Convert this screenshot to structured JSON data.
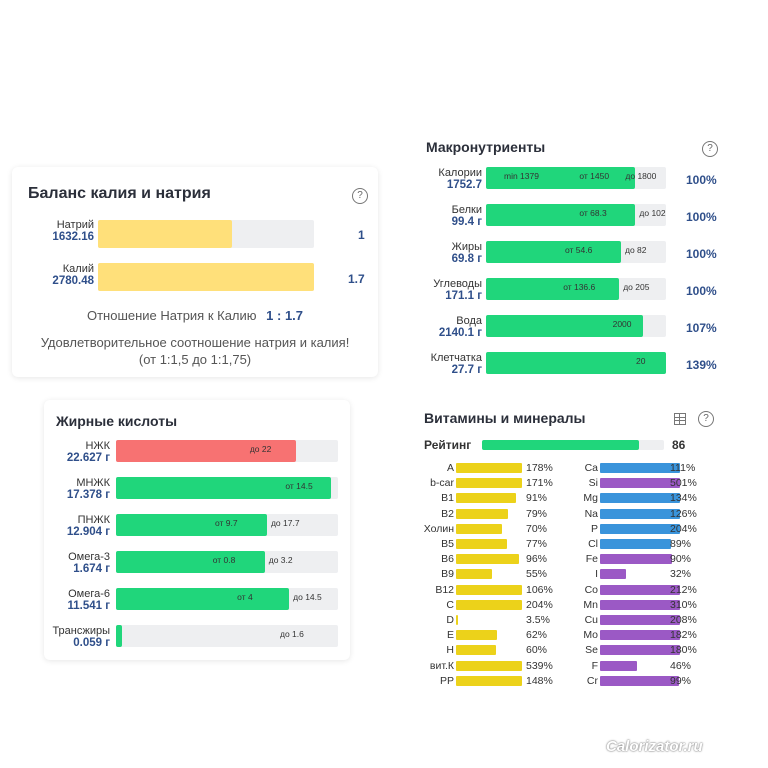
{
  "balance": {
    "title": "Баланс калия и натрия",
    "help": "?",
    "rows": [
      {
        "name": "Натрий",
        "value": "1632.16",
        "ratio_label": "1",
        "fill": 0.62
      },
      {
        "name": "Калий",
        "value": "2780.48",
        "ratio_label": "1.7",
        "fill": 1.0
      }
    ],
    "ratio_text": "Отношение Натрия к Калию",
    "ratio_value": "1 : 1.7",
    "verdict": "Удовлетворительное соотношение натрия и калия!",
    "range": "(от 1:1,5 до 1:1,75)",
    "colors": {
      "bar": "#ffe07a",
      "track": "#eeeff1"
    }
  },
  "macro": {
    "title": "Макронутриенты",
    "help": "?",
    "rows": [
      {
        "name": "Калории",
        "value": "1752.7",
        "pct": "100%",
        "fill": 0.83,
        "marks": [
          "min 1379",
          "от 1450",
          "до 1800"
        ]
      },
      {
        "name": "Белки",
        "value": "99.4 г",
        "pct": "100%",
        "fill": 0.83,
        "marks": [
          "от 68.3",
          "до 102"
        ]
      },
      {
        "name": "Жиры",
        "value": "69.8 г",
        "pct": "100%",
        "fill": 0.75,
        "marks": [
          "от 54.6",
          "до 82"
        ]
      },
      {
        "name": "Углеводы",
        "value": "171.1 г",
        "pct": "100%",
        "fill": 0.74,
        "marks": [
          "от 136.6",
          "до 205"
        ]
      },
      {
        "name": "Вода",
        "value": "2140.1 г",
        "pct": "107%",
        "fill": 0.87,
        "marks": [
          "2000"
        ]
      },
      {
        "name": "Клетчатка",
        "value": "27.7 г",
        "pct": "139%",
        "fill": 1.0,
        "marks": [
          "20"
        ]
      }
    ],
    "colors": {
      "bar": "#20d67b",
      "track": "#eeeff1"
    }
  },
  "fatty": {
    "title": "Жирные кислоты",
    "rows": [
      {
        "name": "НЖК",
        "value": "22.627 г",
        "fill": 0.81,
        "color": "#f77272",
        "marks": [
          "до 22"
        ]
      },
      {
        "name": "МНЖК",
        "value": "17.378 г",
        "fill": 0.97,
        "color": "#20d67b",
        "marks": [
          "от 14.5"
        ]
      },
      {
        "name": "ПНЖК",
        "value": "12.904 г",
        "fill": 0.68,
        "color": "#20d67b",
        "marks": [
          "от 9.7",
          "до 17.7"
        ]
      },
      {
        "name": "Омега-3",
        "value": "1.674 г",
        "fill": 0.67,
        "color": "#20d67b",
        "marks": [
          "от 0.8",
          "до 3.2"
        ]
      },
      {
        "name": "Омега-6",
        "value": "11.541 г",
        "fill": 0.78,
        "color": "#20d67b",
        "marks": [
          "от 4",
          "до 14.5"
        ]
      },
      {
        "name": "Трансжиры",
        "value": "0.059 г",
        "fill": 0.02,
        "color": "#20d67b",
        "marks": [
          "до 1.6"
        ]
      }
    ]
  },
  "vitamins": {
    "title": "Витамины и минералы",
    "rating_label": "Рейтинг",
    "rating_value": "86",
    "rating_fill": 0.86,
    "left": [
      {
        "name": "A",
        "pct": "178%",
        "fill": 1.0
      },
      {
        "name": "b-car",
        "pct": "171%",
        "fill": 1.0
      },
      {
        "name": "B1",
        "pct": "91%",
        "fill": 0.91
      },
      {
        "name": "B2",
        "pct": "79%",
        "fill": 0.79
      },
      {
        "name": "Холин",
        "pct": "70%",
        "fill": 0.7
      },
      {
        "name": "B5",
        "pct": "77%",
        "fill": 0.77
      },
      {
        "name": "B6",
        "pct": "96%",
        "fill": 0.96
      },
      {
        "name": "B9",
        "pct": "55%",
        "fill": 0.55
      },
      {
        "name": "B12",
        "pct": "106%",
        "fill": 1.0
      },
      {
        "name": "C",
        "pct": "204%",
        "fill": 1.0
      },
      {
        "name": "D",
        "pct": "3.5%",
        "fill": 0.035
      },
      {
        "name": "E",
        "pct": "62%",
        "fill": 0.62
      },
      {
        "name": "H",
        "pct": "60%",
        "fill": 0.6
      },
      {
        "name": "вит.К",
        "pct": "539%",
        "fill": 1.0
      },
      {
        "name": "PP",
        "pct": "148%",
        "fill": 1.0
      }
    ],
    "right": [
      {
        "name": "Ca",
        "pct": "111%",
        "fill": 1.0,
        "color": "#3a94db"
      },
      {
        "name": "Si",
        "pct": "501%",
        "fill": 1.0,
        "color": "#9b59c5"
      },
      {
        "name": "Mg",
        "pct": "134%",
        "fill": 1.0,
        "color": "#3a94db"
      },
      {
        "name": "Na",
        "pct": "126%",
        "fill": 1.0,
        "color": "#3a94db"
      },
      {
        "name": "P",
        "pct": "204%",
        "fill": 1.0,
        "color": "#3a94db"
      },
      {
        "name": "Cl",
        "pct": "89%",
        "fill": 0.89,
        "color": "#3a94db"
      },
      {
        "name": "Fe",
        "pct": "90%",
        "fill": 0.9,
        "color": "#9b59c5"
      },
      {
        "name": "I",
        "pct": "32%",
        "fill": 0.32,
        "color": "#9b59c5"
      },
      {
        "name": "Co",
        "pct": "212%",
        "fill": 1.0,
        "color": "#9b59c5"
      },
      {
        "name": "Mn",
        "pct": "310%",
        "fill": 1.0,
        "color": "#9b59c5"
      },
      {
        "name": "Cu",
        "pct": "208%",
        "fill": 1.0,
        "color": "#9b59c5"
      },
      {
        "name": "Mo",
        "pct": "182%",
        "fill": 1.0,
        "color": "#9b59c5"
      },
      {
        "name": "Se",
        "pct": "180%",
        "fill": 1.0,
        "color": "#9b59c5"
      },
      {
        "name": "F",
        "pct": "46%",
        "fill": 0.46,
        "color": "#9b59c5"
      },
      {
        "name": "Cr",
        "pct": "99%",
        "fill": 0.99,
        "color": "#9b59c5"
      }
    ],
    "icons": [
      "table-icon",
      "help-icon"
    ],
    "help": "?"
  },
  "watermark": "Calorizator.ru"
}
